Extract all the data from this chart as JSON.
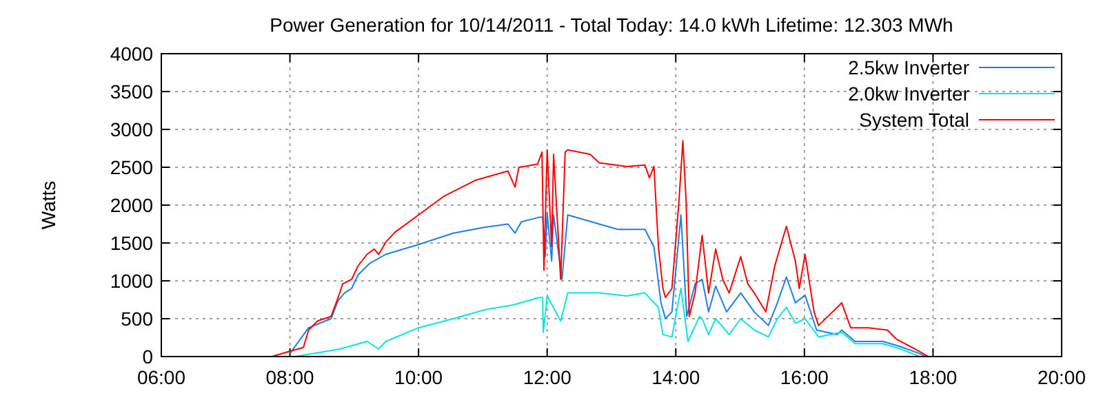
{
  "chart_data": {
    "type": "line",
    "title": "Power Generation for 10/14/2011 - Total Today: 14.0 kWh   Lifetime: 12.303 MWh",
    "ylabel": "Watts",
    "xlim": [
      6,
      20
    ],
    "xticks": [
      {
        "value": 6,
        "label": "06:00"
      },
      {
        "value": 8,
        "label": "08:00"
      },
      {
        "value": 10,
        "label": "10:00"
      },
      {
        "value": 12,
        "label": "12:00"
      },
      {
        "value": 14,
        "label": "14:00"
      },
      {
        "value": 16,
        "label": "16:00"
      },
      {
        "value": 18,
        "label": "18:00"
      },
      {
        "value": 20,
        "label": "20:00"
      }
    ],
    "ylim": [
      0,
      4000
    ],
    "yticks": [
      0,
      500,
      1000,
      1500,
      2000,
      2500,
      3000,
      3500,
      4000
    ],
    "grid": true,
    "legend": "top right",
    "line_style": "solid",
    "marker": "none",
    "series": [
      {
        "name": "2.5kw Inverter",
        "color": "#1e7fe6",
        "x": [
          8.0,
          8.29,
          8.64,
          8.75,
          8.85,
          8.96,
          9.06,
          9.24,
          9.49,
          10.0,
          10.54,
          11.04,
          11.39,
          11.5,
          11.6,
          11.88,
          11.93,
          11.97,
          12.0,
          12.07,
          12.1,
          12.23,
          12.32,
          12.81,
          13.1,
          13.52,
          13.66,
          13.77,
          13.84,
          13.94,
          14.08,
          14.17,
          14.3,
          14.41,
          14.51,
          14.62,
          14.79,
          15.01,
          15.22,
          15.44,
          15.58,
          15.72,
          15.86,
          16.01,
          16.19,
          16.51,
          16.58,
          16.79,
          17.22,
          17.5,
          17.79,
          17.89
        ],
        "values": [
          40,
          380,
          500,
          740,
          840,
          900,
          1080,
          1230,
          1350,
          1480,
          1630,
          1710,
          1750,
          1630,
          1780,
          1840,
          1840,
          1320,
          1900,
          1260,
          1870,
          1020,
          1870,
          1750,
          1680,
          1680,
          1450,
          710,
          500,
          590,
          1870,
          530,
          960,
          1020,
          590,
          930,
          590,
          840,
          590,
          410,
          710,
          1050,
          710,
          810,
          350,
          290,
          350,
          200,
          200,
          130,
          40,
          0
        ]
      },
      {
        "name": "2.0kw Inverter",
        "color": "#00e5e5",
        "x": [
          8.08,
          8.29,
          8.78,
          9.2,
          9.38,
          9.49,
          10.0,
          10.54,
          11.04,
          11.46,
          11.88,
          11.93,
          11.94,
          12.0,
          12.21,
          12.32,
          12.81,
          13.24,
          13.52,
          13.73,
          13.8,
          13.94,
          14.08,
          14.19,
          14.37,
          14.41,
          14.51,
          14.62,
          14.83,
          15.01,
          15.22,
          15.44,
          15.58,
          15.72,
          15.86,
          16.01,
          16.22,
          16.58,
          16.79,
          17.22,
          17.5,
          17.79
        ],
        "values": [
          0,
          30,
          100,
          200,
          100,
          200,
          380,
          500,
          620,
          680,
          780,
          780,
          320,
          800,
          470,
          840,
          840,
          800,
          840,
          650,
          290,
          260,
          900,
          200,
          530,
          500,
          290,
          500,
          290,
          500,
          350,
          260,
          500,
          650,
          440,
          500,
          260,
          320,
          170,
          170,
          100,
          0
        ]
      },
      {
        "name": "System Total",
        "color": "#ff0000",
        "x": [
          7.72,
          8.0,
          8.21,
          8.29,
          8.43,
          8.64,
          8.75,
          8.82,
          8.96,
          9.06,
          9.2,
          9.31,
          9.38,
          9.49,
          9.63,
          10.0,
          10.4,
          10.89,
          11.39,
          11.5,
          11.56,
          11.85,
          11.92,
          11.95,
          12.0,
          12.07,
          12.1,
          12.21,
          12.28,
          12.32,
          12.67,
          12.81,
          13.24,
          13.52,
          13.59,
          13.66,
          13.73,
          13.8,
          13.84,
          13.94,
          14.05,
          14.11,
          14.16,
          14.21,
          14.3,
          14.41,
          14.51,
          14.62,
          14.73,
          14.83,
          15.01,
          15.12,
          15.22,
          15.4,
          15.54,
          15.72,
          15.86,
          15.92,
          16.01,
          16.15,
          16.22,
          16.51,
          16.58,
          16.72,
          17.0,
          17.29,
          17.43,
          17.72,
          17.93
        ],
        "values": [
          0,
          70,
          120,
          350,
          470,
          530,
          780,
          960,
          1020,
          1200,
          1350,
          1420,
          1350,
          1510,
          1640,
          1870,
          2120,
          2330,
          2450,
          2240,
          2500,
          2540,
          2700,
          1140,
          2730,
          1450,
          2670,
          1020,
          2700,
          2730,
          2670,
          2560,
          2510,
          2530,
          2360,
          2510,
          1450,
          900,
          780,
          900,
          2060,
          2850,
          2060,
          530,
          840,
          1600,
          840,
          1420,
          1020,
          840,
          1320,
          960,
          840,
          590,
          1200,
          1720,
          1260,
          900,
          1350,
          590,
          410,
          650,
          710,
          380,
          380,
          350,
          230,
          100,
          0
        ]
      }
    ]
  }
}
